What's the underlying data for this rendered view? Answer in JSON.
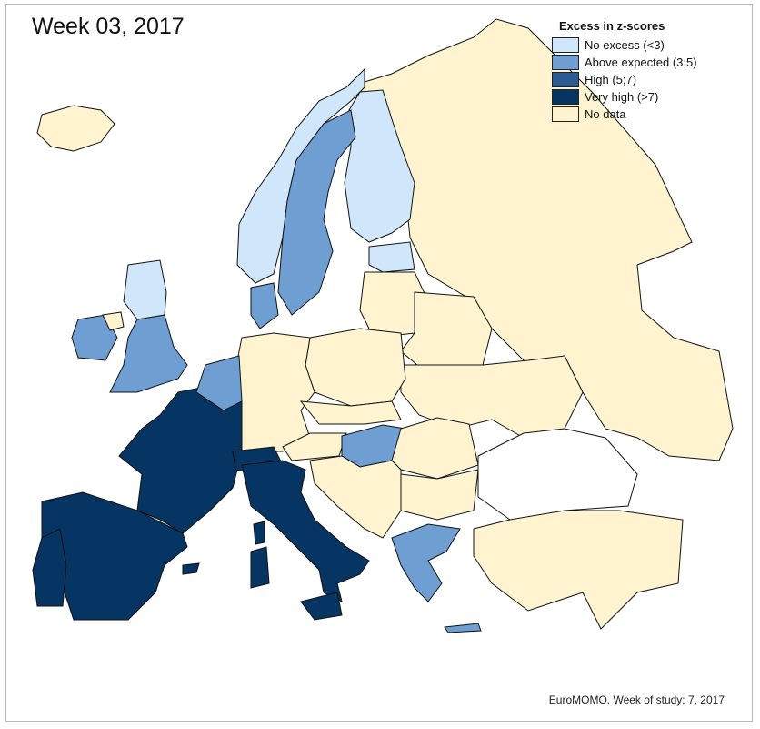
{
  "title": "Week 03, 2017",
  "legend": {
    "title": "Excess in z-scores",
    "items": [
      {
        "label": "No excess (<3)",
        "color": "#cfe6fb"
      },
      {
        "label": "Above expected (3;5)",
        "color": "#6f9fd2"
      },
      {
        "label": "High (5;7)",
        "color": "#2c5b92"
      },
      {
        "label": "Very high (>7)",
        "color": "#073563"
      },
      {
        "label": "No data",
        "color": "#fff4cf"
      }
    ]
  },
  "footer": "EuroMOMO. Week of study: 7, 2017",
  "regions": {
    "no_excess": [
      "Norway",
      "Finland",
      "Estonia",
      "Scotland"
    ],
    "above_expected": [
      "Sweden",
      "Denmark",
      "Ireland",
      "England",
      "Netherlands",
      "Belgium",
      "Hungary",
      "Greece"
    ],
    "high": [],
    "very_high": [
      "France",
      "Spain",
      "Portugal",
      "Switzerland",
      "Italy",
      "Malta"
    ],
    "no_data": [
      "Iceland",
      "Russia",
      "Baltics",
      "Poland",
      "Germany",
      "Austria",
      "Czechia",
      "Slovakia",
      "Belarus",
      "Ukraine",
      "Romania",
      "Balkans",
      "Bulgaria",
      "Turkey",
      "Northern Ireland"
    ]
  }
}
